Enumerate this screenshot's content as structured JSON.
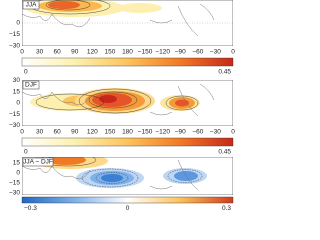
{
  "panels": [
    {
      "label": "JJA",
      "yticks": [
        "0",
        "−15",
        "−30"
      ],
      "xticks": [
        "0",
        "30",
        "60",
        "90",
        "120",
        "150",
        "180",
        "−150",
        "−120",
        "−90",
        "−60",
        "−30",
        "0"
      ],
      "colorbar": [
        "0",
        "0.45"
      ]
    },
    {
      "label": "DJF",
      "yticks": [
        "30",
        "15",
        "0",
        "−15",
        "−30"
      ],
      "xticks": [
        "0",
        "30",
        "60",
        "90",
        "120",
        "150",
        "180",
        "−150",
        "−120",
        "−90",
        "−60",
        "−30",
        "0"
      ],
      "colorbar": [
        "0",
        "0.45"
      ]
    },
    {
      "label": "JJA − DJF",
      "yticks": [
        "15",
        "0",
        "−15",
        "−30"
      ],
      "colorbar": [
        "−0.3",
        "0",
        "0.3"
      ]
    }
  ]
}
